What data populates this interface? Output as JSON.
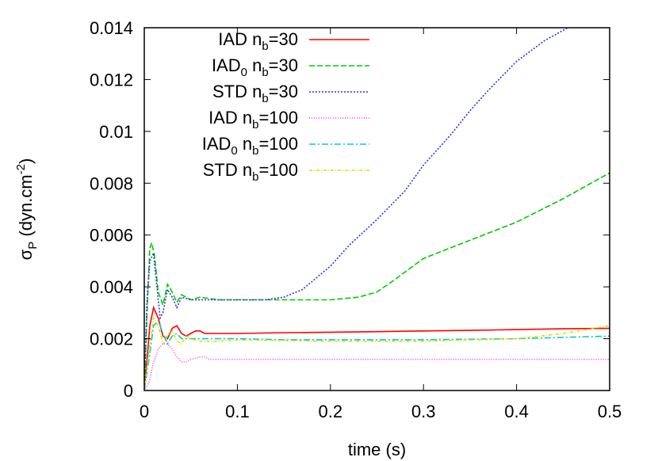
{
  "chart_data": {
    "type": "line",
    "xlabel": "time (s)",
    "ylabel_main": "σ",
    "ylabel_sub": "P",
    "ylabel_rest": " (dyn.cm",
    "ylabel_sup": "-2",
    "ylabel_close": ")",
    "xlim": [
      0,
      0.5
    ],
    "ylim": [
      0,
      0.014
    ],
    "xticks": [
      0,
      0.1,
      0.2,
      0.3,
      0.4,
      0.5
    ],
    "xtick_labels": [
      "0",
      "0.1",
      "0.2",
      "0.3",
      "0.4",
      "0.5"
    ],
    "yticks": [
      0,
      0.002,
      0.004,
      0.006,
      0.008,
      0.01,
      0.012,
      0.014
    ],
    "ytick_labels": [
      "0",
      "0.002",
      "0.004",
      "0.006",
      "0.008",
      "0.01",
      "0.012",
      "0.014"
    ],
    "legend_position": "top-left",
    "series": [
      {
        "name_main": "IAD n",
        "name_sub": "b",
        "name_rest": "=30",
        "name_prefix_sub": "",
        "color": "#ff0000",
        "dash": "",
        "x": [
          0,
          0.003,
          0.006,
          0.01,
          0.015,
          0.02,
          0.025,
          0.03,
          0.035,
          0.04,
          0.045,
          0.05,
          0.055,
          0.06,
          0.065,
          0.07,
          0.08,
          0.09,
          0.1,
          0.15,
          0.2,
          0.25,
          0.3,
          0.35,
          0.4,
          0.45,
          0.5
        ],
        "y": [
          0,
          0.0012,
          0.0025,
          0.0032,
          0.0028,
          0.0021,
          0.002,
          0.0024,
          0.0025,
          0.0022,
          0.0021,
          0.0022,
          0.0023,
          0.0023,
          0.0022,
          0.0022,
          0.0022,
          0.0022,
          0.0022,
          0.00223,
          0.00225,
          0.00227,
          0.0023,
          0.00232,
          0.00235,
          0.00238,
          0.0024
        ]
      },
      {
        "name_main": "IAD",
        "name_sub": "b",
        "name_rest": "=30",
        "name_prefix_sub": "0",
        "color": "#00cc00",
        "dash": "7,3",
        "x": [
          0,
          0.003,
          0.006,
          0.008,
          0.011,
          0.015,
          0.02,
          0.025,
          0.03,
          0.035,
          0.04,
          0.045,
          0.05,
          0.06,
          0.08,
          0.1,
          0.15,
          0.2,
          0.23,
          0.25,
          0.27,
          0.3,
          0.35,
          0.4,
          0.45,
          0.5
        ],
        "y": [
          0,
          0.003,
          0.0055,
          0.0057,
          0.0052,
          0.0038,
          0.0033,
          0.0041,
          0.0038,
          0.0034,
          0.0037,
          0.0036,
          0.0035,
          0.0036,
          0.0035,
          0.0035,
          0.0035,
          0.0035,
          0.0036,
          0.0038,
          0.0043,
          0.0051,
          0.0058,
          0.0065,
          0.0074,
          0.0084
        ]
      },
      {
        "name_main": "STD n",
        "name_sub": "b",
        "name_rest": "=30",
        "name_prefix_sub": "",
        "color": "#3333dd",
        "dash": "2,2",
        "x": [
          0,
          0.003,
          0.006,
          0.01,
          0.013,
          0.017,
          0.02,
          0.025,
          0.03,
          0.035,
          0.04,
          0.05,
          0.07,
          0.1,
          0.13,
          0.15,
          0.17,
          0.2,
          0.22,
          0.25,
          0.28,
          0.3,
          0.33,
          0.35,
          0.37,
          0.4,
          0.43,
          0.45,
          0.455
        ],
        "y": [
          0,
          0.0035,
          0.005,
          0.0053,
          0.0042,
          0.0028,
          0.003,
          0.0039,
          0.0036,
          0.0032,
          0.0036,
          0.0035,
          0.0035,
          0.0035,
          0.0035,
          0.0036,
          0.0039,
          0.0048,
          0.0056,
          0.0066,
          0.0077,
          0.0087,
          0.0099,
          0.0108,
          0.0116,
          0.0127,
          0.0135,
          0.0139,
          0.014
        ]
      },
      {
        "name_main": "IAD  n",
        "name_sub": "b",
        "name_rest": "=100",
        "name_prefix_sub": "",
        "color": "#ff33ff",
        "dash": "1,2",
        "x": [
          0,
          0.005,
          0.01,
          0.015,
          0.02,
          0.025,
          0.03,
          0.035,
          0.04,
          0.045,
          0.05,
          0.06,
          0.065,
          0.07,
          0.08,
          0.09,
          0.1,
          0.15,
          0.2,
          0.3,
          0.4,
          0.5
        ],
        "y": [
          0,
          0.0003,
          0.0011,
          0.0016,
          0.0018,
          0.0018,
          0.0016,
          0.0013,
          0.0011,
          0.0011,
          0.0012,
          0.0013,
          0.0013,
          0.0012,
          0.0012,
          0.0012,
          0.0012,
          0.0012,
          0.0012,
          0.0012,
          0.0012,
          0.0012
        ]
      },
      {
        "name_main": "IAD",
        "name_sub": "b",
        "name_rest": "=100",
        "name_prefix_sub": "0",
        "color": "#00cccc",
        "dash": "8,3,2,3",
        "x": [
          0,
          0.005,
          0.01,
          0.015,
          0.02,
          0.025,
          0.03,
          0.035,
          0.04,
          0.05,
          0.06,
          0.08,
          0.1,
          0.15,
          0.2,
          0.3,
          0.4,
          0.5
        ],
        "y": [
          0,
          0.0012,
          0.0025,
          0.0027,
          0.0022,
          0.0018,
          0.0021,
          0.0022,
          0.002,
          0.002,
          0.002,
          0.002,
          0.002,
          0.00196,
          0.00196,
          0.00196,
          0.002,
          0.0021
        ]
      },
      {
        "name_main": "STD n",
        "name_sub": "b",
        "name_rest": "=100",
        "name_prefix_sub": "",
        "color": "#dddd00",
        "dash": "4,2,1,2",
        "x": [
          0,
          0.005,
          0.01,
          0.015,
          0.02,
          0.025,
          0.03,
          0.035,
          0.04,
          0.045,
          0.05,
          0.06,
          0.08,
          0.1,
          0.15,
          0.2,
          0.3,
          0.4,
          0.45,
          0.5
        ],
        "y": [
          0,
          0.0015,
          0.0028,
          0.0025,
          0.0018,
          0.0021,
          0.0023,
          0.0019,
          0.0018,
          0.0021,
          0.002,
          0.0019,
          0.0019,
          0.00195,
          0.00193,
          0.0019,
          0.0019,
          0.002,
          0.0022,
          0.0025
        ]
      }
    ]
  }
}
